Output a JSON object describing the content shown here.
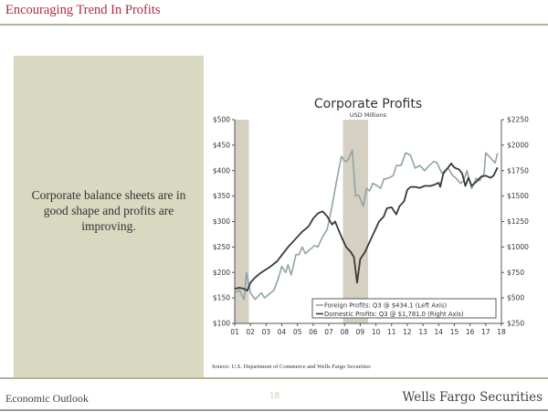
{
  "header": {
    "title": "Encouraging Trend In Profits"
  },
  "panel": {
    "text": "Corporate balance sheets are in good shape and profits are improving."
  },
  "source": "Source: U.S. Department of Commerce and Wells Fargo Securities",
  "footer": {
    "left": "Economic Outlook",
    "page": "18",
    "brand": "Wells Fargo Securities"
  },
  "colors": {
    "title": "#b5283f",
    "panel": "#d9d8c1",
    "foreign": "#8fa3a8",
    "domestic": "#3a3a3a",
    "recession": "#d5d0c2"
  },
  "chart_data": {
    "type": "line",
    "title": "Corporate Profits",
    "subtitle": "USD Millions",
    "xlim": [
      2001,
      2018
    ],
    "x_tick_labels": [
      "01",
      "02",
      "03",
      "04",
      "05",
      "06",
      "07",
      "08",
      "09",
      "10",
      "11",
      "12",
      "13",
      "14",
      "15",
      "16",
      "17",
      "18"
    ],
    "left_axis": {
      "ylim": [
        100,
        500
      ],
      "tick_labels": [
        "$500",
        "$450",
        "$400",
        "$350",
        "$300",
        "$250",
        "$200",
        "$150",
        "$100"
      ]
    },
    "right_axis": {
      "ylim": [
        250,
        2250
      ],
      "tick_labels": [
        "$2250",
        "$2000",
        "$1750",
        "$1500",
        "$1250",
        "$1000",
        "$750",
        "$500",
        "$250"
      ]
    },
    "recessions": [
      [
        2001.0,
        2001.9
      ],
      [
        2007.9,
        2009.5
      ]
    ],
    "legend_position": "bottom-right",
    "series": [
      {
        "name": "Foreign Profits: Q3 @ $434.1 (Left Axis)",
        "axis": "left",
        "x": [
          2001,
          2001.3,
          2001.6,
          2001.75,
          2002,
          2002.3,
          2002.7,
          2002.9,
          2003.5,
          2003.8,
          2004,
          2004.25,
          2004.4,
          2004.6,
          2004.9,
          2005.1,
          2005.3,
          2005.5,
          2005.8,
          2006.1,
          2006.3,
          2006.6,
          2006.9,
          2007.2,
          2007.5,
          2007.8,
          2008,
          2008.2,
          2008.5,
          2008.7,
          2008.9,
          2009.2,
          2009.4,
          2009.6,
          2009.8,
          2010.1,
          2010.3,
          2010.5,
          2010.8,
          2011.1,
          2011.3,
          2011.6,
          2011.9,
          2012.2,
          2012.5,
          2012.8,
          2013.1,
          2013.4,
          2013.7,
          2013.9,
          2014.2,
          2014.4,
          2014.6,
          2014.9,
          2015.1,
          2015.4,
          2015.6,
          2015.8,
          2016.1,
          2016.4,
          2016.6,
          2016.9,
          2017.0,
          2017.3,
          2017.6,
          2017.75
        ],
        "values": [
          160,
          165,
          147,
          200,
          160,
          147,
          160,
          150,
          165,
          190,
          212,
          200,
          215,
          195,
          235,
          235,
          250,
          237,
          245,
          253,
          250,
          270,
          285,
          330,
          380,
          428,
          418,
          420,
          440,
          350,
          352,
          330,
          365,
          360,
          375,
          370,
          365,
          383,
          385,
          390,
          410,
          410,
          435,
          430,
          405,
          410,
          400,
          410,
          418,
          415,
          395,
          400,
          405,
          390,
          385,
          375,
          380,
          400,
          365,
          385,
          380,
          395,
          435,
          425,
          415,
          434
        ]
      },
      {
        "name": "Domestic Profits: Q3 @ $1,781.0 (Right Axis)",
        "axis": "right",
        "x": [
          2001,
          2001.3,
          2001.6,
          2001.8,
          2002,
          2002.3,
          2002.6,
          2003,
          2003.3,
          2003.7,
          2004,
          2004.4,
          2004.7,
          2005,
          2005.3,
          2005.7,
          2006,
          2006.3,
          2006.6,
          2006.9,
          2007.2,
          2007.4,
          2007.8,
          2008.1,
          2008.4,
          2008.6,
          2008.8,
          2009,
          2009.3,
          2009.6,
          2009.9,
          2010.2,
          2010.5,
          2010.7,
          2011,
          2011.3,
          2011.5,
          2011.8,
          2012,
          2012.2,
          2012.5,
          2012.8,
          2013.1,
          2013.5,
          2013.7,
          2014,
          2014.1,
          2014.3,
          2014.6,
          2014.8,
          2015,
          2015.3,
          2015.5,
          2015.7,
          2015.9,
          2016.1,
          2016.4,
          2016.7,
          2017,
          2017.3,
          2017.5,
          2017.75
        ],
        "values": [
          590,
          600,
          590,
          570,
          650,
          700,
          740,
          780,
          810,
          860,
          920,
          1000,
          1050,
          1100,
          1150,
          1200,
          1280,
          1330,
          1350,
          1300,
          1220,
          1250,
          1100,
          1000,
          950,
          900,
          650,
          880,
          950,
          1050,
          1150,
          1250,
          1300,
          1380,
          1390,
          1320,
          1400,
          1450,
          1560,
          1590,
          1590,
          1580,
          1600,
          1600,
          1610,
          1630,
          1590,
          1720,
          1780,
          1820,
          1780,
          1760,
          1720,
          1600,
          1680,
          1600,
          1640,
          1690,
          1700,
          1680,
          1700,
          1781
        ]
      }
    ]
  }
}
